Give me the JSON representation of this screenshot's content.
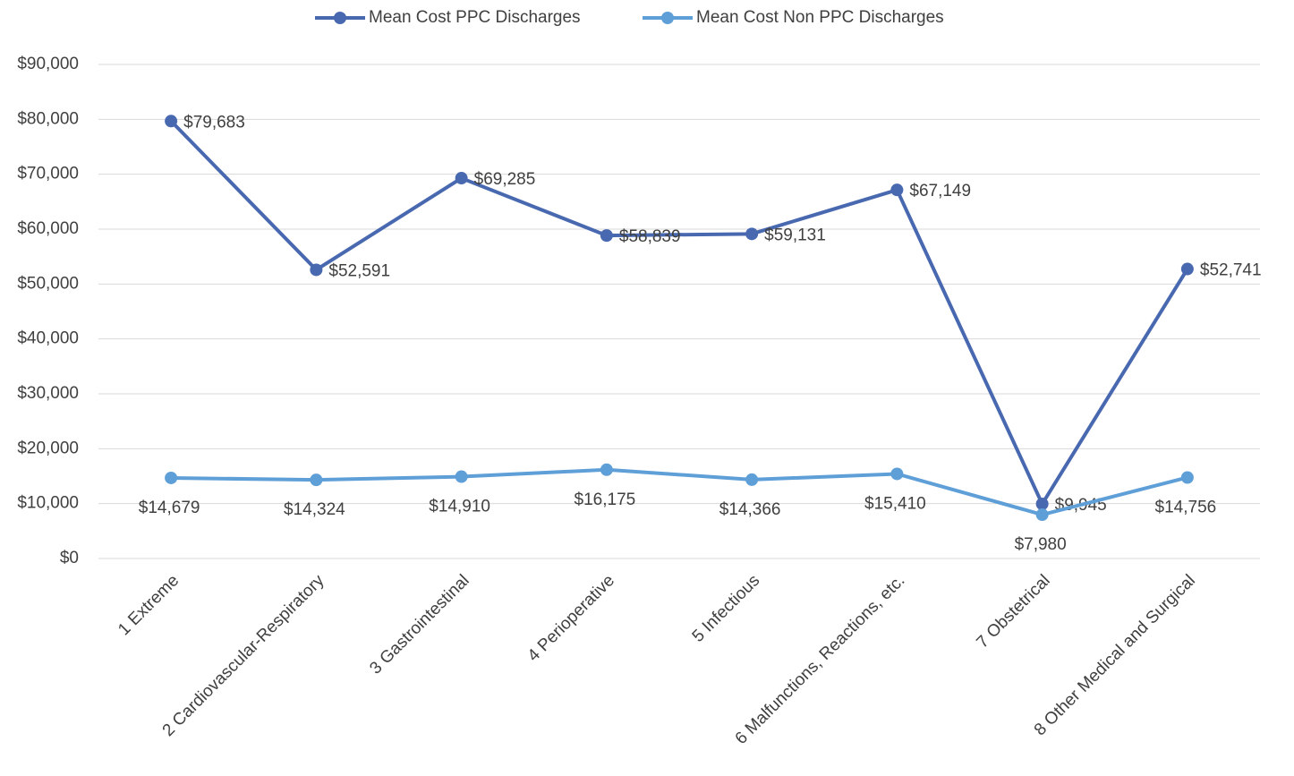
{
  "chart_data": {
    "type": "line",
    "categories": [
      "1 Extreme",
      "2 Cardiovascular-Respiratory",
      "3 Gastrointestinal",
      "4 Perioperative",
      "5 Infectious",
      "6 Malfunctions, Reactions, etc.",
      "7 Obstetrical",
      "8 Other Medical and Surgical"
    ],
    "series": [
      {
        "name": "Mean Cost PPC Discharges",
        "color": "#4868b0",
        "values": [
          79683,
          52591,
          69285,
          58839,
          59131,
          67149,
          9945,
          52741
        ],
        "value_labels": [
          "$79,683",
          "$52,591",
          "$69,285",
          "$58,839",
          "$59,131",
          "$67,149",
          "$9,945",
          "$52,741"
        ]
      },
      {
        "name": "Mean Cost Non PPC Discharges",
        "color": "#5f9fd8",
        "values": [
          14679,
          14324,
          14910,
          16175,
          14366,
          15410,
          7980,
          14756
        ],
        "value_labels": [
          "$14,679",
          "$14,324",
          "$14,910",
          "$16,175",
          "$14,366",
          "$15,410",
          "$7,980",
          "$14,756"
        ]
      }
    ],
    "ylim": [
      0,
      90000
    ],
    "yticks": [
      {
        "value": 0,
        "label": "$0"
      },
      {
        "value": 10000,
        "label": "$10,000"
      },
      {
        "value": 20000,
        "label": "$20,000"
      },
      {
        "value": 30000,
        "label": "$30,000"
      },
      {
        "value": 40000,
        "label": "$40,000"
      },
      {
        "value": 50000,
        "label": "$50,000"
      },
      {
        "value": 60000,
        "label": "$60,000"
      },
      {
        "value": 70000,
        "label": "$70,000"
      },
      {
        "value": 80000,
        "label": "$80,000"
      },
      {
        "value": 90000,
        "label": "$90,000"
      }
    ],
    "grid": true,
    "legend": "top"
  }
}
